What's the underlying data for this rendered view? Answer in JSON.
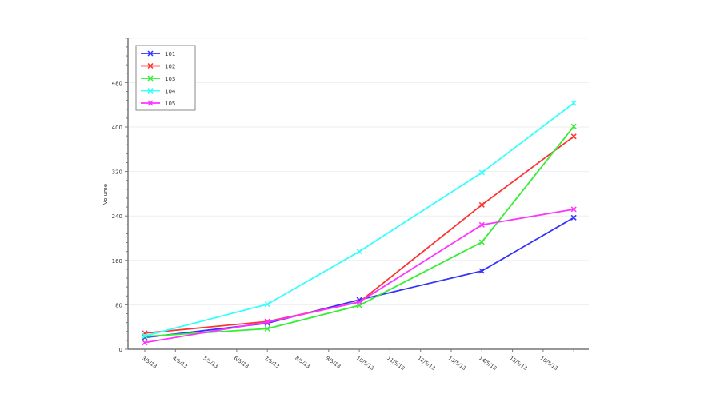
{
  "chart_data": {
    "type": "line",
    "title": "",
    "xlabel": "",
    "ylabel": "Volume",
    "ylim": [
      0,
      560
    ],
    "yticks": [
      0,
      80,
      160,
      240,
      320,
      400,
      480
    ],
    "xtick_labels": [
      "3/5/13",
      "4/5/13",
      "5/5/13",
      "6/5/13",
      "7/5/13",
      "8/5/13",
      "9/5/13",
      "10/5/13",
      "11/5/13",
      "12/5/13",
      "13/5/13",
      "14/5/13",
      "15/5/13",
      "16/5/13"
    ],
    "x_days": [
      3,
      7,
      10,
      14,
      17
    ],
    "grid": true,
    "legend_placement": "top-left",
    "series": [
      {
        "name": "101",
        "color": "#3333ff",
        "values": [
          21,
          47,
          89,
          141,
          237
        ]
      },
      {
        "name": "102",
        "color": "#ff3333",
        "values": [
          29,
          50,
          85,
          260,
          383
        ]
      },
      {
        "name": "103",
        "color": "#33ee33",
        "values": [
          23,
          37,
          79,
          193,
          401
        ]
      },
      {
        "name": "104",
        "color": "#33ffff",
        "values": [
          24,
          81,
          176,
          318,
          443
        ]
      },
      {
        "name": "105",
        "color": "#ff33ff",
        "values": [
          12,
          49,
          85,
          224,
          252
        ]
      }
    ]
  }
}
